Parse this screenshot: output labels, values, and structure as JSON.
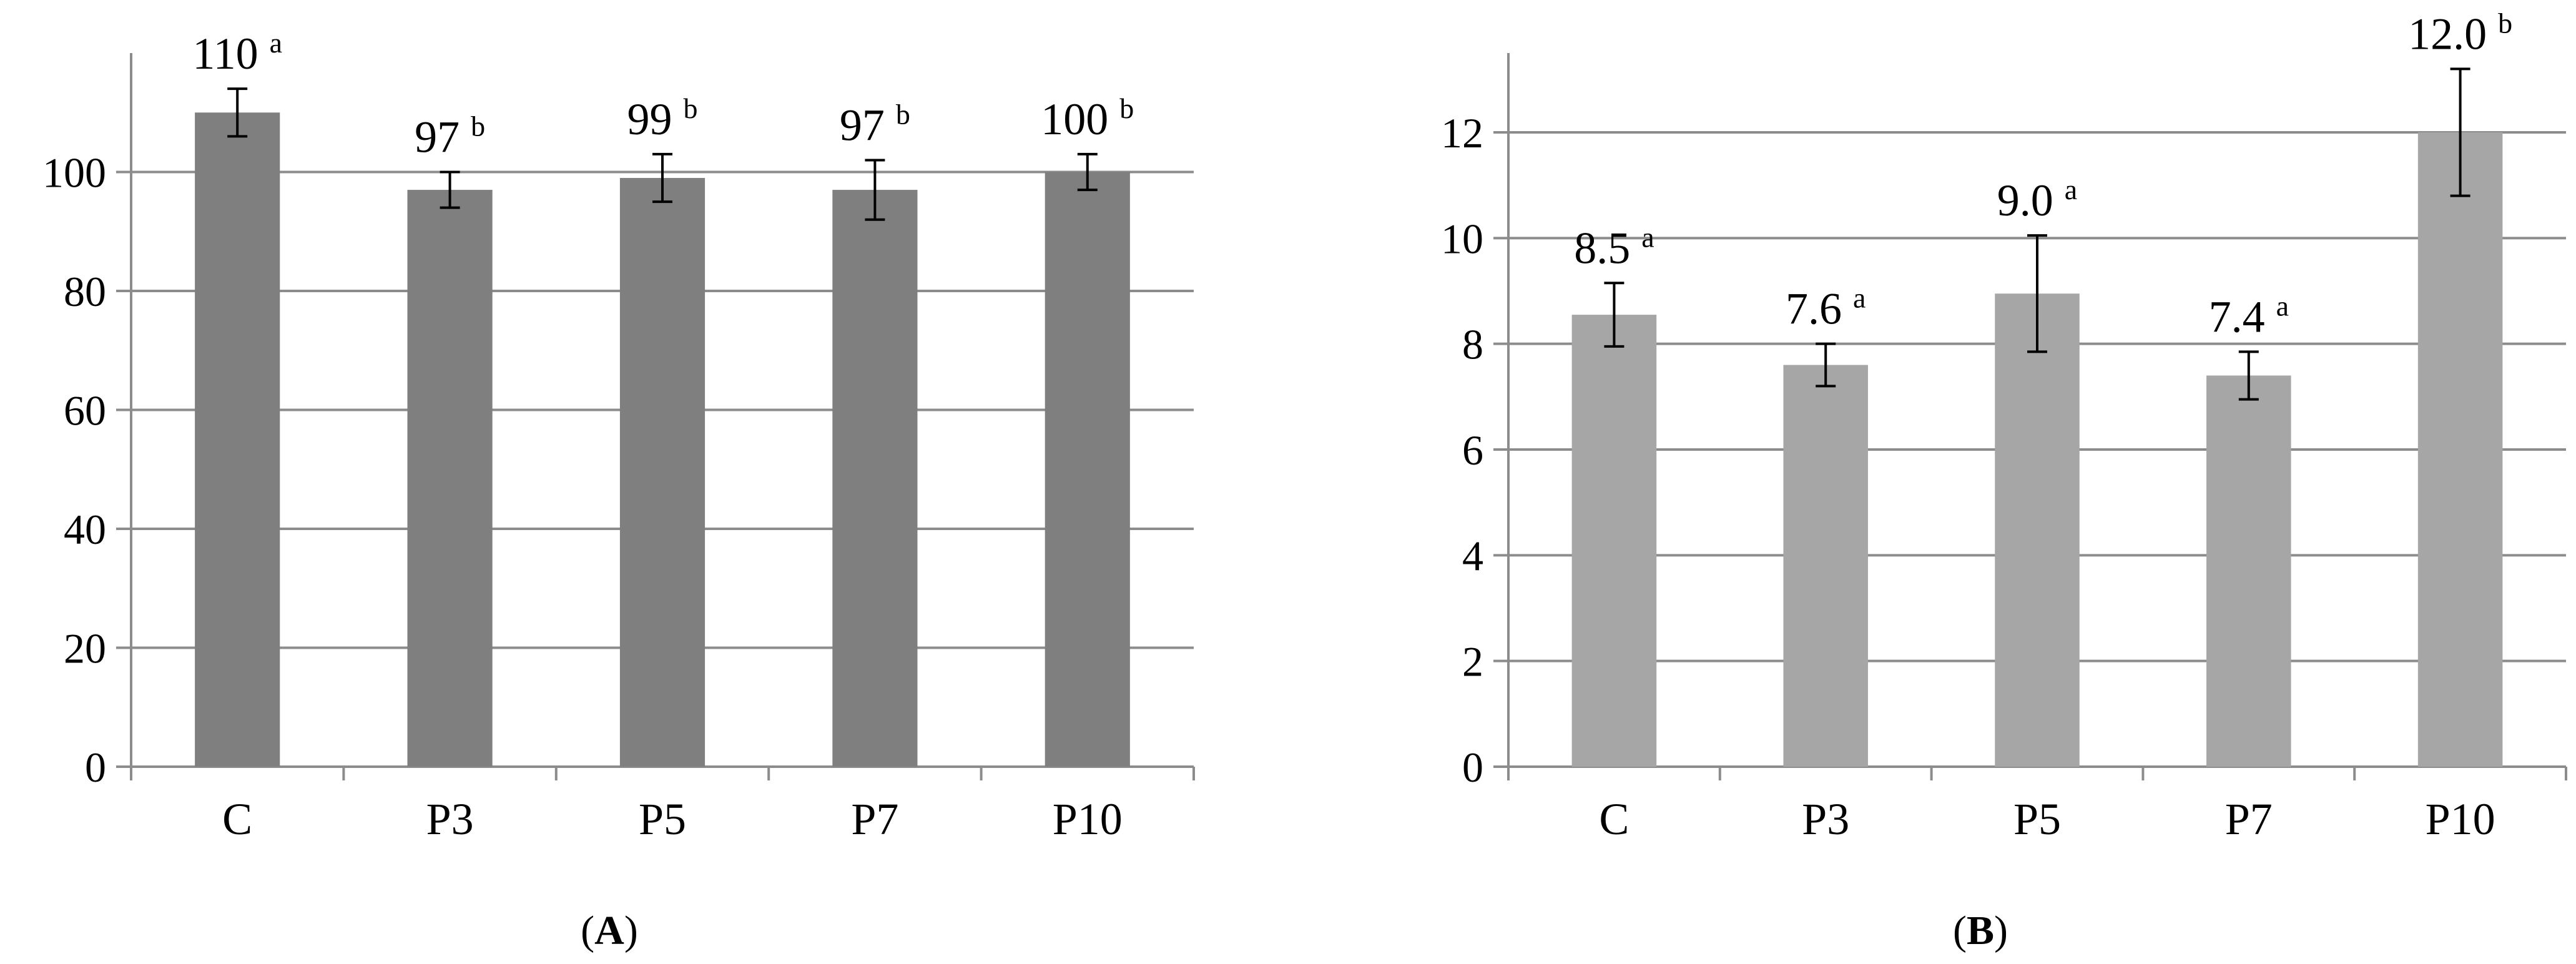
{
  "colors": {
    "panel_a_bar": "#7f7f7f",
    "panel_b_bar": "#a6a6a6",
    "grid": "#8c8c8c",
    "axis": "#8c8c8c",
    "text": "#000000"
  },
  "panels": [
    {
      "letter": "A"
    },
    {
      "letter": "B"
    }
  ],
  "chart_data": [
    {
      "type": "bar",
      "panel": "A",
      "categories": [
        "C",
        "P3",
        "P5",
        "P7",
        "P10"
      ],
      "values": [
        110,
        97,
        99,
        97,
        100
      ],
      "errors": [
        4,
        3,
        4,
        5,
        3
      ],
      "value_labels": [
        "110",
        "97",
        "99",
        "97",
        "100"
      ],
      "significance": [
        "a",
        "b",
        "b",
        "b",
        "b"
      ],
      "ylim": [
        0,
        120
      ],
      "yticks": [
        0,
        20,
        40,
        60,
        80,
        100
      ],
      "ytick_labels": [
        "0",
        "20",
        "40",
        "60",
        "80",
        "100"
      ],
      "grid": true,
      "title": "",
      "xlabel": "",
      "ylabel": ""
    },
    {
      "type": "bar",
      "panel": "B",
      "categories": [
        "C",
        "P3",
        "P5",
        "P7",
        "P10"
      ],
      "values": [
        8.55,
        7.6,
        8.95,
        7.4,
        12.0
      ],
      "errors": [
        0.6,
        0.4,
        1.1,
        0.45,
        1.2
      ],
      "value_labels": [
        "8.5",
        "7.6",
        "9.0",
        "7.4",
        "12.0"
      ],
      "significance": [
        "a",
        "a",
        "a",
        "a",
        "b"
      ],
      "ylim": [
        0,
        13.5
      ],
      "yticks": [
        0,
        2,
        4,
        6,
        8,
        10,
        12
      ],
      "ytick_labels": [
        "0",
        "2",
        "4",
        "6",
        "8",
        "10",
        "12"
      ],
      "grid": true,
      "title": "",
      "xlabel": "",
      "ylabel": ""
    }
  ]
}
